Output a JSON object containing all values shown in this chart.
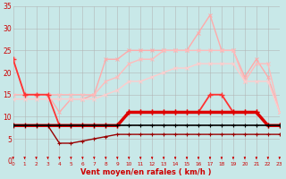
{
  "x": [
    0,
    1,
    2,
    3,
    4,
    5,
    6,
    7,
    8,
    9,
    10,
    11,
    12,
    13,
    14,
    15,
    16,
    17,
    18,
    19,
    20,
    21,
    22,
    23
  ],
  "series": [
    {
      "y": [
        23,
        15,
        15,
        15,
        11,
        14,
        14,
        15,
        23,
        23,
        25,
        25,
        25,
        25,
        25,
        25,
        29,
        33,
        25,
        25,
        19,
        23,
        19,
        11
      ],
      "color": "#ffaaaa",
      "lw": 1.0,
      "marker": "x",
      "ms": 3,
      "mew": 0.7
    },
    {
      "y": [
        15,
        15,
        15,
        15,
        15,
        15,
        15,
        15,
        18,
        19,
        22,
        23,
        23,
        25,
        25,
        25,
        25,
        25,
        25,
        25,
        18,
        22,
        22,
        11
      ],
      "color": "#ffbbbb",
      "lw": 1.0,
      "marker": "x",
      "ms": 3,
      "mew": 0.7
    },
    {
      "y": [
        14,
        14,
        14,
        14,
        14,
        14,
        14,
        14,
        15,
        16,
        18,
        18,
        19,
        20,
        21,
        21,
        22,
        22,
        22,
        22,
        18,
        18,
        18,
        11
      ],
      "color": "#ffcccc",
      "lw": 1.0,
      "marker": "x",
      "ms": 3,
      "mew": 0.7
    },
    {
      "y": [
        23,
        15,
        15,
        15,
        8,
        8,
        8,
        8,
        8,
        8,
        11,
        11,
        11,
        11,
        11,
        11,
        11,
        15,
        15,
        11,
        11,
        11,
        8,
        8
      ],
      "color": "#ff3333",
      "lw": 1.3,
      "marker": "+",
      "ms": 4,
      "mew": 1.0
    },
    {
      "y": [
        8,
        8,
        8,
        8,
        8,
        8,
        8,
        8,
        8,
        8,
        11,
        11,
        11,
        11,
        11,
        11,
        11,
        11,
        11,
        11,
        11,
        11,
        8,
        8
      ],
      "color": "#dd0000",
      "lw": 2.5,
      "marker": "+",
      "ms": 4,
      "mew": 1.0
    },
    {
      "y": [
        8,
        8,
        8,
        8,
        4,
        4,
        4.5,
        5,
        5.5,
        6,
        6,
        6,
        6,
        6,
        6,
        6,
        6,
        6,
        6,
        6,
        6,
        6,
        6,
        6
      ],
      "color": "#990000",
      "lw": 1.0,
      "marker": "+",
      "ms": 3,
      "mew": 0.8
    },
    {
      "y": [
        8,
        8,
        8,
        8,
        8,
        8,
        8,
        8,
        8,
        8,
        8,
        8,
        8,
        8,
        8,
        8,
        8,
        8,
        8,
        8,
        8,
        8,
        8,
        8
      ],
      "color": "#000000",
      "lw": 1.2,
      "marker": "+",
      "ms": 3,
      "mew": 0.8
    }
  ],
  "xlim": [
    0,
    23
  ],
  "ylim": [
    0,
    35
  ],
  "yticks": [
    0,
    5,
    10,
    15,
    20,
    25,
    30,
    35
  ],
  "ytick_labels": [
    "0",
    "5",
    "10",
    "15",
    "20",
    "25",
    "30",
    "35"
  ],
  "xtick_labels": [
    "0",
    "1",
    "2",
    "3",
    "4",
    "5",
    "6",
    "7",
    "8",
    "9",
    "10",
    "11",
    "12",
    "13",
    "14",
    "15",
    "16",
    "17",
    "18",
    "19",
    "20",
    "21",
    "22",
    "23"
  ],
  "xlabel": "Vent moyen/en rafales ( km/h )",
  "background_color": "#c8e8e8",
  "grid_color": "#b0b0b0",
  "arrow_color": "#cc0000"
}
